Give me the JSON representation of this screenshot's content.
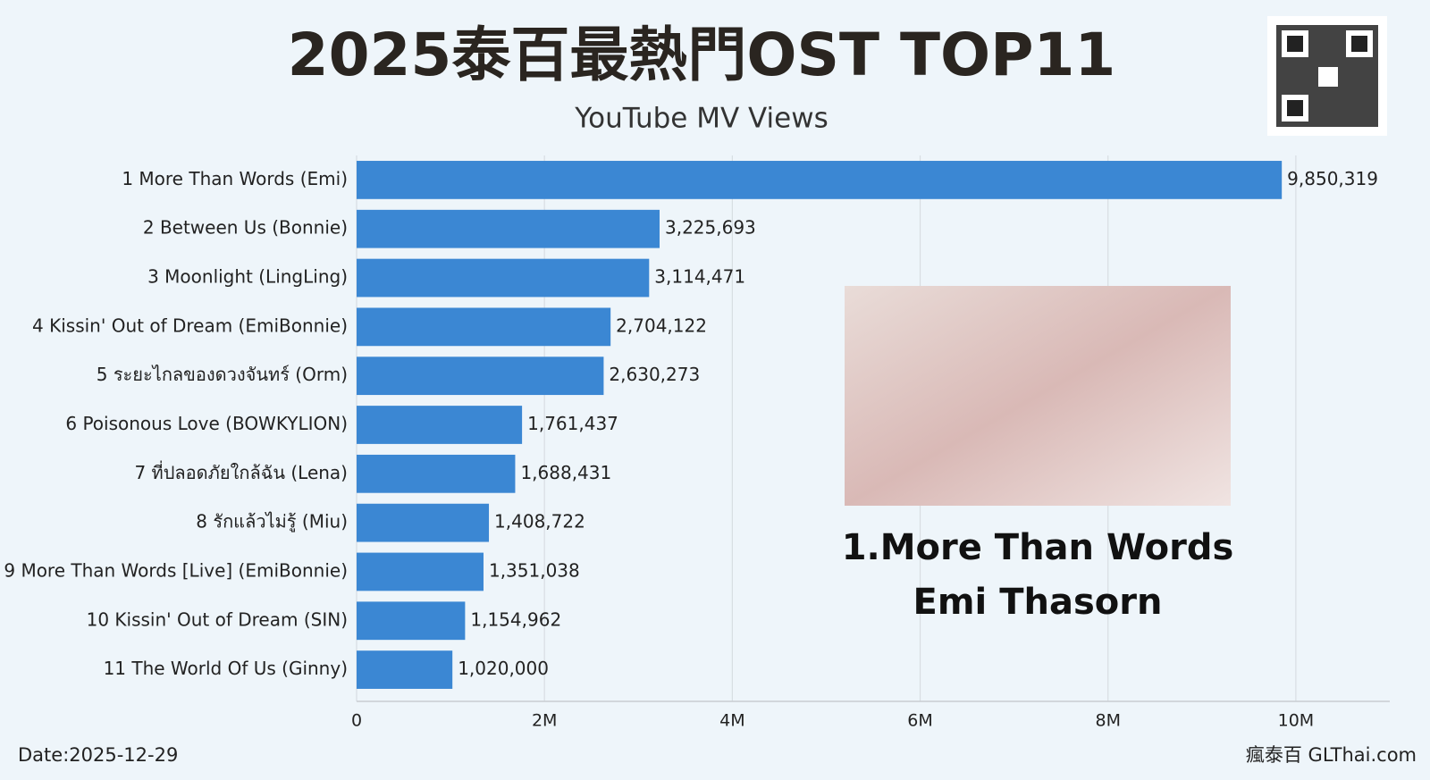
{
  "chart_data": {
    "type": "barh",
    "title": "2025泰百最熱門OST TOP11",
    "subtitle": "YouTube MV Views",
    "categories": [
      "1 More Than Words (Emi)",
      "2 Between Us (Bonnie)",
      "3 Moonlight (LingLing)",
      "4 Kissin' Out of Dream (EmiBonnie)",
      "5 ระยะไกลของดวงจันทร์ (Orm)",
      "6 Poisonous Love (BOWKYLION)",
      "7 ที่ปลอดภัยใกล้ฉัน (Lena)",
      "8 รักแล้วไม่รู้ (Miu)",
      "9 More Than Words [Live] (EmiBonnie)",
      "10 Kissin' Out of Dream (SIN)",
      "11 The World Of Us (Ginny)"
    ],
    "values": [
      9850319,
      3225693,
      3114471,
      2704122,
      2630273,
      1761437,
      1688431,
      1408722,
      1351038,
      1154962,
      1020000
    ],
    "value_labels": [
      "9,850,319",
      "3,225,693",
      "3,114,471",
      "2,704,122",
      "2,630,273",
      "1,761,437",
      "1,688,431",
      "1,408,722",
      "1,351,038",
      "1,154,962",
      "1,020,000"
    ],
    "color": "#3b87d3",
    "xlim": [
      0,
      11000000
    ],
    "xticks": [
      0,
      {
        "value": 2000000,
        "label": "2M"
      },
      {
        "value": 4000000,
        "label": "4M"
      },
      {
        "value": 6000000,
        "label": "6M"
      },
      {
        "value": 8000000,
        "label": "8M"
      },
      {
        "value": 10000000,
        "label": "10M"
      }
    ],
    "grid": true,
    "highlight_title": "1.More Than Words",
    "highlight_artist": "Emi Thasorn",
    "date": "Date:2025-12-29",
    "source": "瘋泰百 GLThai.com"
  }
}
